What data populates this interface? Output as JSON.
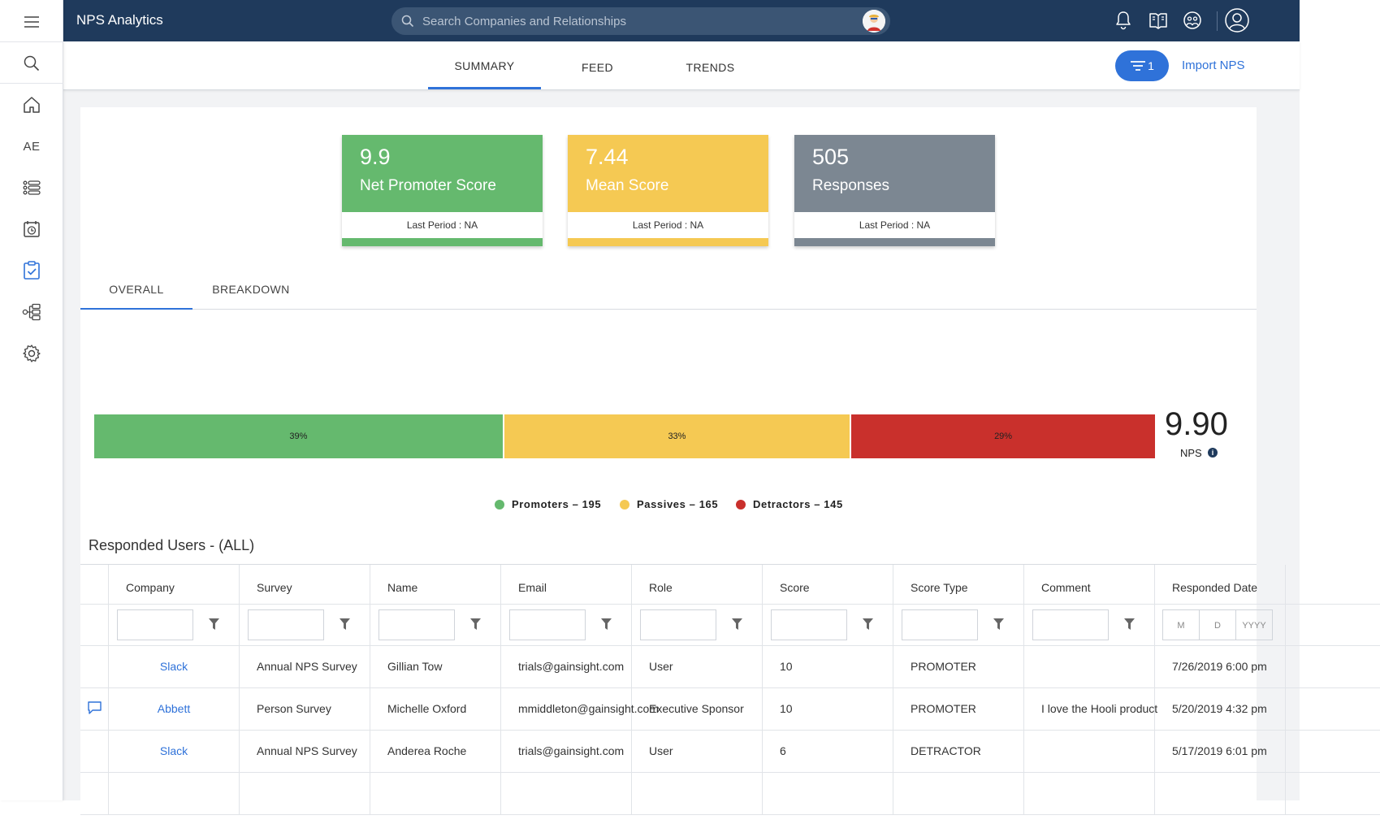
{
  "header": {
    "app_title": "NPS Analytics",
    "search_placeholder": "Search Companies and Relationships"
  },
  "sidebar": {
    "items": [
      {
        "name": "menu-icon"
      },
      {
        "name": "search-icon"
      },
      {
        "name": "home-icon"
      },
      {
        "label": "AE"
      },
      {
        "name": "list-icon"
      },
      {
        "name": "calendar-clock-icon"
      },
      {
        "name": "clipboard-check-icon",
        "active": true
      },
      {
        "name": "hierarchy-icon"
      },
      {
        "name": "gear-icon"
      }
    ]
  },
  "subnav": {
    "tabs": [
      {
        "label": "SUMMARY",
        "active": true
      },
      {
        "label": "FEED"
      },
      {
        "label": "TRENDS"
      }
    ],
    "filter_count": "1",
    "import_label": "Import NPS"
  },
  "kpis": [
    {
      "value": "9.9",
      "label": "Net Promoter Score",
      "last_period": "Last Period : NA",
      "color": "#65b96e"
    },
    {
      "value": "7.44",
      "label": "Mean Score",
      "last_period": "Last Period : NA",
      "color": "#f5c953"
    },
    {
      "value": "505",
      "label": "Responses",
      "last_period": "Last Period : NA",
      "color": "#7c8792"
    }
  ],
  "view_tabs": [
    {
      "label": "OVERALL",
      "active": true
    },
    {
      "label": "BREAKDOWN"
    }
  ],
  "nps_bar": {
    "segments": [
      {
        "label": "39%",
        "share": 39,
        "color": "#65b96e"
      },
      {
        "label": "33%",
        "share": 33,
        "color": "#f5c953"
      },
      {
        "label": "29%",
        "share": 29,
        "color": "#c9302c"
      }
    ],
    "nps_value": "9.90",
    "nps_label": "NPS"
  },
  "legend": [
    {
      "label": "Promoters",
      "count": "195",
      "text": "Promoters  –  195",
      "color": "#65b96e"
    },
    {
      "label": "Passives",
      "count": "165",
      "text": "Passives  –  165",
      "color": "#f5c953"
    },
    {
      "label": "Detractors",
      "count": "145",
      "text": "Detractors  –  145",
      "color": "#c9302c"
    }
  ],
  "table": {
    "title": "Responded Users - (ALL)",
    "columns": [
      "Company",
      "Survey",
      "Name",
      "Email",
      "Role",
      "Score",
      "Score Type",
      "Comment",
      "Responded Date"
    ],
    "date_filter": [
      "M",
      "D",
      "YYYY"
    ],
    "rows": [
      {
        "company": "Slack",
        "survey": "Annual NPS Survey",
        "name": "Gillian Tow",
        "email": "trials@gainsight.com",
        "role": "User",
        "score": "10",
        "score_type": "PROMOTER",
        "comment": "",
        "date": "7/26/2019 6:00 pm",
        "has_comment": false
      },
      {
        "company": "Abbett",
        "survey": "Person Survey",
        "name": "Michelle Oxford",
        "email": "mmiddleton@gainsight.com",
        "role": "Executive Sponsor",
        "score": "10",
        "score_type": "PROMOTER",
        "comment": "I love the Hooli product",
        "date": "5/20/2019 4:32 pm",
        "has_comment": true
      },
      {
        "company": "Slack",
        "survey": "Annual NPS Survey",
        "name": "Anderea Roche",
        "email": "trials@gainsight.com",
        "role": "User",
        "score": "6",
        "score_type": "DETRACTOR",
        "comment": "",
        "date": "5/17/2019 6:01 pm",
        "has_comment": false
      }
    ]
  },
  "colors": {
    "header_bg": "#1f3a5c",
    "accent": "#2f72d9"
  }
}
